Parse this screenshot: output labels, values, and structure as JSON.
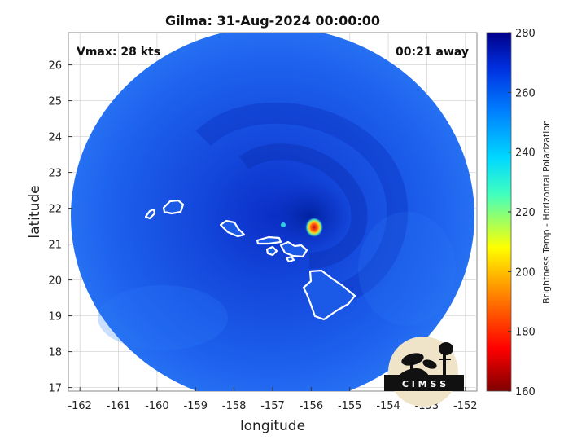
{
  "title": "Gilma: 31-Aug-2024 00:00:00",
  "vmax_text": "Vmax: 28 kts",
  "away_text": "00:21 away",
  "xlabel": "longitude",
  "ylabel": "latitude",
  "x_ticks": [
    "-162",
    "-161",
    "-160",
    "-159",
    "-158",
    "-157",
    "-156",
    "-155",
    "-154",
    "-153",
    "-152"
  ],
  "y_ticks": [
    "26",
    "25",
    "24",
    "23",
    "22",
    "21",
    "20",
    "19",
    "18",
    "17"
  ],
  "colorbar": {
    "label": "Brightness Temp - Horizontal Polarization",
    "ticks": [
      "280",
      "260",
      "240",
      "220",
      "200",
      "180",
      "160"
    ],
    "range": [
      160,
      280
    ]
  },
  "logo_text": "C I M S S",
  "colors": {
    "background_swath": "#1a5ce6",
    "coast": "#ffffff",
    "hotspot": "#e8201a"
  }
}
